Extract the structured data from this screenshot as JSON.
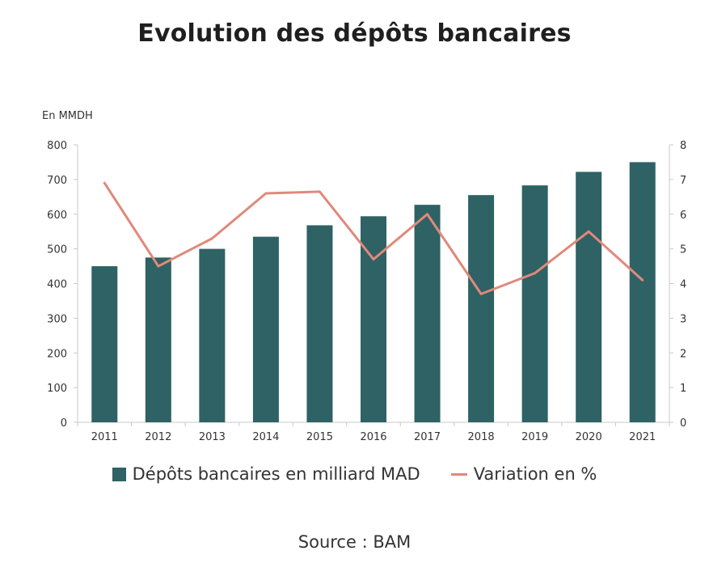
{
  "chart_data": {
    "type": "bar",
    "title": "Evolution des dépôts bancaires",
    "y_unit_label": "En MMDH",
    "categories": [
      "2011",
      "2012",
      "2013",
      "2014",
      "2015",
      "2016",
      "2017",
      "2018",
      "2019",
      "2020",
      "2021"
    ],
    "series": [
      {
        "name": "Dépôts bancaires en milliard MAD",
        "type": "bar",
        "axis": "left",
        "values": [
          450,
          475,
          500,
          535,
          568,
          594,
          627,
          655,
          683,
          722,
          750
        ]
      },
      {
        "name": "Variation en %",
        "type": "line",
        "axis": "right",
        "values": [
          6.9,
          4.5,
          5.3,
          6.6,
          6.65,
          4.7,
          6.0,
          3.7,
          4.3,
          5.5,
          4.1
        ]
      }
    ],
    "ylim_left": [
      0,
      800
    ],
    "ylim_right": [
      0,
      8
    ],
    "yticks_left": [
      "0",
      "100",
      "200",
      "300",
      "400",
      "500",
      "600",
      "700",
      "800"
    ],
    "yticks_right": [
      "0",
      "1",
      "2",
      "3",
      "4",
      "5",
      "6",
      "7",
      "8"
    ],
    "grid": false,
    "legend_position": "bottom",
    "colors": {
      "bar": "#2e6264",
      "line": "#e0897b",
      "axis": "#c8c8c8"
    }
  },
  "source": "Source : BAM"
}
